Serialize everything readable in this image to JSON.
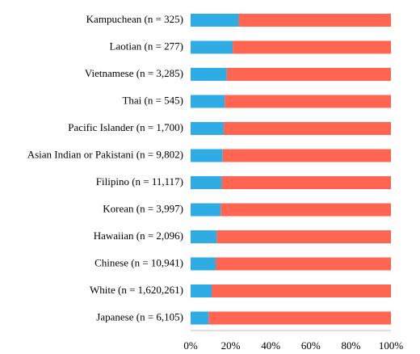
{
  "chart_data": {
    "type": "bar",
    "orientation": "horizontal",
    "stacked": true,
    "normalized": true,
    "categories": [
      "Kampuchean (n = 325)",
      "Laotian (n = 277)",
      "Vietnamese (n = 3,285)",
      "Thai (n = 545)",
      "Pacific Islander (n = 1,700)",
      "Asian Indian or Pakistani (n = 9,802)",
      "Filipino (n = 11,117)",
      "Korean (n = 3,997)",
      "Hawaiian (n = 2,096)",
      "Chinese (n = 10,941)",
      "White (n = 1,620,261)",
      "Japanese (n = 6,105)"
    ],
    "series": [
      {
        "color": "#2FACE3",
        "values": [
          24,
          21,
          18,
          17,
          16.5,
          16,
          15.5,
          15,
          13,
          12.5,
          10.5,
          9
        ]
      },
      {
        "color": "#FF6550",
        "values": [
          76,
          79,
          82,
          83,
          83.5,
          84,
          84.5,
          85,
          87,
          87.5,
          89.5,
          91
        ]
      }
    ],
    "xlim": [
      0,
      100
    ],
    "xticks": [
      "0%",
      "20%",
      "40%",
      "60%",
      "80%",
      "100%"
    ],
    "xticks_values": [
      0,
      20,
      40,
      60,
      80,
      100
    ],
    "title": "",
    "xlabel": "",
    "ylabel": "",
    "grid": false,
    "legend": "none"
  }
}
